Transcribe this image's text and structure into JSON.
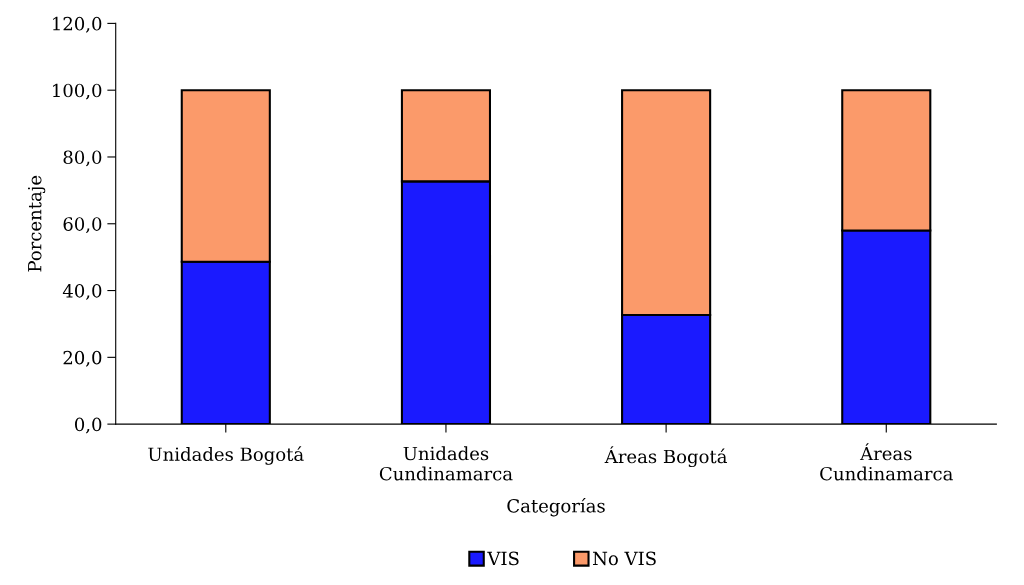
{
  "chart_data": {
    "type": "bar",
    "stacked": true,
    "xlabel": "Categorías",
    "ylabel": "Porcentaje",
    "categories": [
      "Unidades Bogotá",
      "Unidades\nCundinamarca",
      "Áreas Bogotá",
      "Áreas\nCundinamarca"
    ],
    "series": [
      {
        "name": "VIS",
        "color": "#1a1aff",
        "values": [
          48.6,
          72.7,
          32.7,
          58.0
        ]
      },
      {
        "name": "No VIS",
        "color": "#fb9a6a",
        "values": [
          51.4,
          27.3,
          67.3,
          42.0
        ]
      }
    ],
    "ylim": [
      0,
      120
    ],
    "yticks": [
      {
        "value": 0,
        "label": "0,0"
      },
      {
        "value": 20,
        "label": "20,0"
      },
      {
        "value": 40,
        "label": "40,0"
      },
      {
        "value": 60,
        "label": "60,0"
      },
      {
        "value": 80,
        "label": "80,0"
      },
      {
        "value": 100,
        "label": "100,0"
      },
      {
        "value": 120,
        "label": "120,0"
      }
    ],
    "grid": false,
    "legend": "bottom"
  }
}
